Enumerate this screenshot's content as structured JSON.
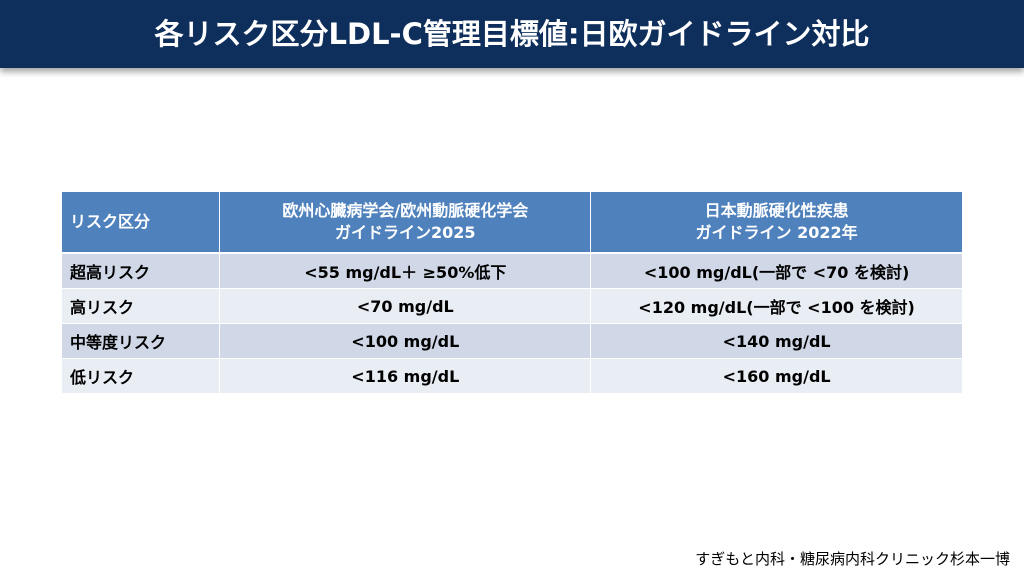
{
  "header": {
    "title": "各リスク区分LDL-C管理目標値:日欧ガイドライン対比"
  },
  "table": {
    "headers": [
      [
        "リスク区分"
      ],
      [
        "欧州心臓病学会/欧州動脈硬化学会",
        "ガイドライン2025"
      ],
      [
        "日本動脈硬化性疾患",
        "ガイドライン 2022年"
      ]
    ],
    "rows": [
      [
        "超高リスク",
        "<55 mg/dL＋ ≥50%低下",
        "<100 mg/dL(一部で <70 を検討)"
      ],
      [
        "高リスク",
        "<70 mg/dL",
        "<120 mg/dL(一部で <100 を検討)"
      ],
      [
        "中等度リスク",
        "<100 mg/dL",
        "<140 mg/dL"
      ],
      [
        "低リスク",
        "<116 mg/dL",
        "<160 mg/dL"
      ]
    ]
  },
  "footer": {
    "credit": "すぎもと内科・糖尿病内科クリニック杉本一博"
  }
}
